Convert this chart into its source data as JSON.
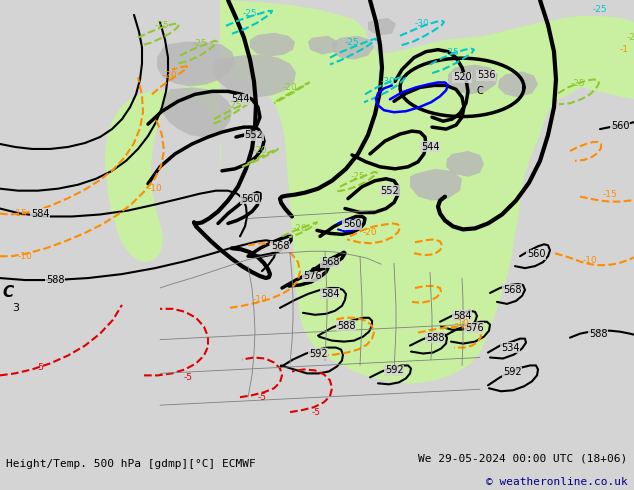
{
  "title_left": "Height/Temp. 500 hPa [gdmp][°C] ECMWF",
  "title_right": "We 29-05-2024 00:00 UTC (18+06)",
  "copyright": "© weatheronline.co.uk",
  "bg_color": "#d4d4d4",
  "map_bg_color": "#d4d4d4",
  "land_green_color": "#c8f0a0",
  "land_gray_color": "#b8b8b8",
  "z500_color": "#000000",
  "orange_color": "#ff8c00",
  "red_color": "#dd0000",
  "green_color": "#90c830",
  "cyan_color": "#00c8c8",
  "blue_color": "#0000ff",
  "fig_width": 6.34,
  "fig_height": 4.9,
  "bottom_bar_height": 0.088
}
